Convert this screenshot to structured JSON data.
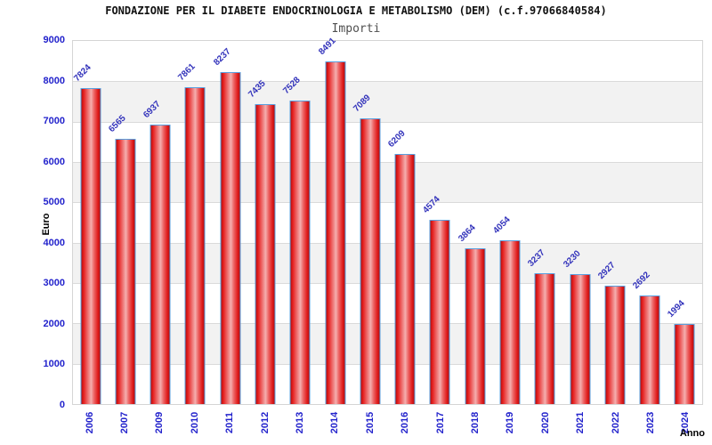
{
  "chart_data": {
    "type": "bar",
    "title": "FONDAZIONE PER IL DIABETE ENDOCRINOLOGIA E METABOLISMO (DEM) (c.f.97066840584)",
    "subtitle": "Importi",
    "xlabel": "Anno",
    "ylabel": "Euro",
    "categories": [
      "2006",
      "2007",
      "2009",
      "2010",
      "2011",
      "2012",
      "2013",
      "2014",
      "2015",
      "2016",
      "2017",
      "2018",
      "2019",
      "2020",
      "2021",
      "2022",
      "2023",
      "2024"
    ],
    "values": [
      7824,
      6565,
      6937,
      7861,
      8237,
      7435,
      7528,
      8491,
      7089,
      6209,
      4574,
      3864,
      4054,
      3237,
      3230,
      2927,
      2692,
      1994
    ],
    "ylim": [
      0,
      9000
    ],
    "ytick_step": 1000,
    "grid": "horizontal gridlines with alternating background bands",
    "legend_position": "none",
    "colors": {
      "bar_fill": "#e61f1f",
      "bar_highlight": "#f5afaf",
      "bar_border": "#58a0e0",
      "value_label": "#3333bb",
      "axis_tick_label": "#2222cc",
      "band_alt": "#f2f2f2",
      "band_main": "#ffffff",
      "gridline": "#dadada",
      "title": "#111111",
      "subtitle": "#4f4f4f",
      "axis_title": "#000000"
    }
  }
}
